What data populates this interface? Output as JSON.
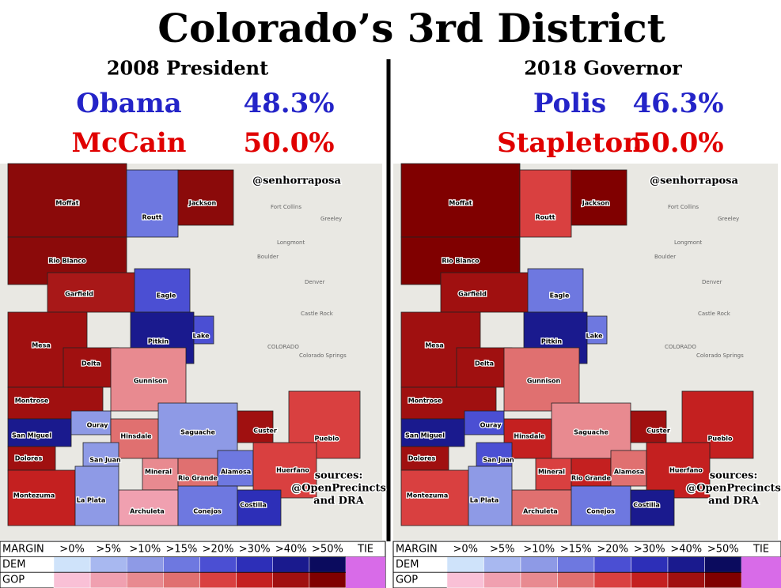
{
  "title": "Colorado’s 3rd District",
  "panels": [
    {
      "race": "2008 President",
      "candidates": [
        {
          "name": "Obama",
          "pct": "48.3%",
          "color": "#2424c8"
        },
        {
          "name": "McCain",
          "pct": "50.0%",
          "color": "#e00000"
        }
      ],
      "counties": [
        {
          "name": "Moffat",
          "color": "#8b0a0a"
        },
        {
          "name": "Rio Blanco",
          "color": "#8b0a0a"
        },
        {
          "name": "Garfield",
          "color": "#a81818"
        },
        {
          "name": "Routt",
          "color": "#6e78e0"
        },
        {
          "name": "Jackson",
          "color": "#8b0a0a"
        },
        {
          "name": "Eagle",
          "color": "#4b4fd3"
        },
        {
          "name": "Mesa",
          "color": "#a01010"
        },
        {
          "name": "Delta",
          "color": "#a01010"
        },
        {
          "name": "Pitkin",
          "color": "#1a1a8e"
        },
        {
          "name": "Lake",
          "color": "#4b4fd3"
        },
        {
          "name": "Gunnison",
          "color": "#e88a90"
        },
        {
          "name": "Montrose",
          "color": "#a01010"
        },
        {
          "name": "San Miguel",
          "color": "#1a1a8e"
        },
        {
          "name": "Ouray",
          "color": "#8e9ae6"
        },
        {
          "name": "Hinsdale",
          "color": "#e07070"
        },
        {
          "name": "Saguache",
          "color": "#8e9ae6"
        },
        {
          "name": "Custer",
          "color": "#a01010"
        },
        {
          "name": "Pueblo",
          "color": "#d94040"
        },
        {
          "name": "Dolores",
          "color": "#a01010"
        },
        {
          "name": "San Juan",
          "color": "#8e9ae6"
        },
        {
          "name": "Mineral",
          "color": "#e88a90"
        },
        {
          "name": "Rio Grande",
          "color": "#e07070"
        },
        {
          "name": "Alamosa",
          "color": "#6e78e0"
        },
        {
          "name": "Huerfano",
          "color": "#d94040"
        },
        {
          "name": "Montezuma",
          "color": "#c42020"
        },
        {
          "name": "La Plata",
          "color": "#8e9ae6"
        },
        {
          "name": "Archuleta",
          "color": "#f0a0b0"
        },
        {
          "name": "Conejos",
          "color": "#6e78e0"
        },
        {
          "name": "Costilla",
          "color": "#2d2fb8"
        }
      ]
    },
    {
      "race": "2018 Governor",
      "candidates": [
        {
          "name": "Polis",
          "pct": "46.3%",
          "color": "#2424c8"
        },
        {
          "name": "Stapleton",
          "pct": "50.0%",
          "color": "#e00000"
        }
      ],
      "counties": [
        {
          "name": "Moffat",
          "color": "#800000"
        },
        {
          "name": "Rio Blanco",
          "color": "#800000"
        },
        {
          "name": "Garfield",
          "color": "#a01010"
        },
        {
          "name": "Routt",
          "color": "#d94040"
        },
        {
          "name": "Jackson",
          "color": "#800000"
        },
        {
          "name": "Eagle",
          "color": "#6e78e0"
        },
        {
          "name": "Mesa",
          "color": "#a01010"
        },
        {
          "name": "Delta",
          "color": "#a01010"
        },
        {
          "name": "Pitkin",
          "color": "#1a1a8e"
        },
        {
          "name": "Lake",
          "color": "#6e78e0"
        },
        {
          "name": "Gunnison",
          "color": "#e07070"
        },
        {
          "name": "Montrose",
          "color": "#a01010"
        },
        {
          "name": "San Miguel",
          "color": "#1a1a8e"
        },
        {
          "name": "Ouray",
          "color": "#4b4fd3"
        },
        {
          "name": "Hinsdale",
          "color": "#c42020"
        },
        {
          "name": "Saguache",
          "color": "#e88a90"
        },
        {
          "name": "Custer",
          "color": "#a01010"
        },
        {
          "name": "Pueblo",
          "color": "#c42020"
        },
        {
          "name": "Dolores",
          "color": "#a01010"
        },
        {
          "name": "San Juan",
          "color": "#4b4fd3"
        },
        {
          "name": "Mineral",
          "color": "#d94040"
        },
        {
          "name": "Rio Grande",
          "color": "#c42020"
        },
        {
          "name": "Alamosa",
          "color": "#e07070"
        },
        {
          "name": "Huerfano",
          "color": "#c42020"
        },
        {
          "name": "Montezuma",
          "color": "#d94040"
        },
        {
          "name": "La Plata",
          "color": "#8e9ae6"
        },
        {
          "name": "Archuleta",
          "color": "#e07070"
        },
        {
          "name": "Conejos",
          "color": "#6e78e0"
        },
        {
          "name": "Costilla",
          "color": "#1a1a8e"
        }
      ]
    }
  ],
  "credit": "@senhorraposa",
  "sources": [
    "sources:",
    "@OpenPrecincts",
    "and DRA"
  ],
  "cities": [
    "Fort Collins",
    "Greeley",
    "Longmont",
    "Boulder",
    "Denver",
    "Castle Rock",
    "COLORADO",
    "Colorado Springs"
  ],
  "legend": {
    "header": "MARGIN",
    "bins": [
      ">0%",
      ">5%",
      ">10%",
      ">15%",
      ">20%",
      ">30%",
      ">40%",
      ">50%"
    ],
    "tie": "TIE",
    "tie_color": "#d86be8",
    "rows": [
      {
        "label": "DEM",
        "colors": [
          "#cfe3fa",
          "#a8b8f0",
          "#8e9ae6",
          "#6e78e0",
          "#4b4fd3",
          "#2d2fb8",
          "#1a1a8e",
          "#0b0b5e"
        ]
      },
      {
        "label": "GOP",
        "colors": [
          "#f9c0d6",
          "#f0a0b0",
          "#e88a90",
          "#e07070",
          "#d94040",
          "#c42020",
          "#a01010",
          "#800000"
        ]
      }
    ]
  }
}
